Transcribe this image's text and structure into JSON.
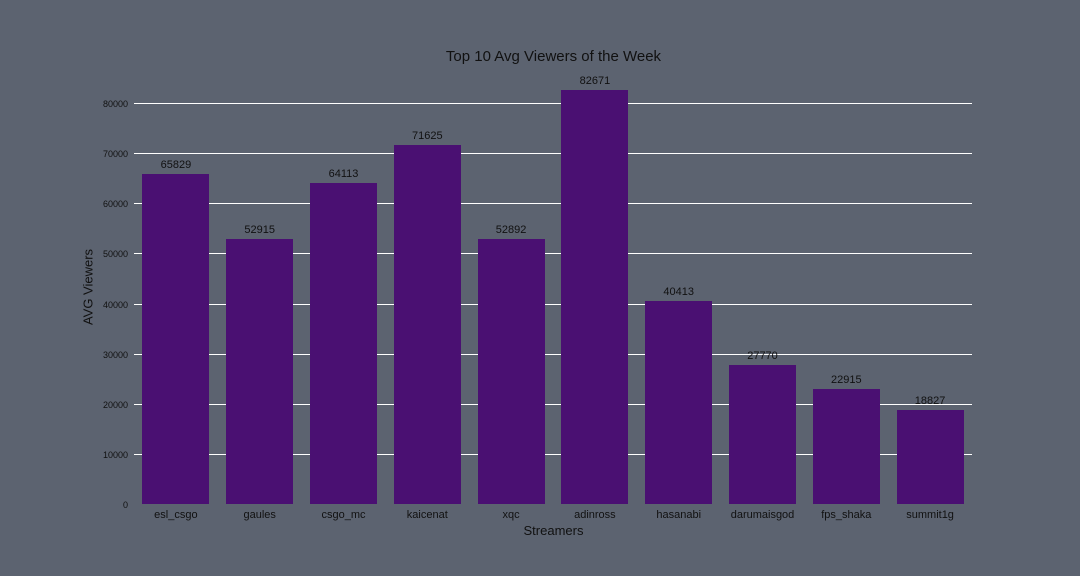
{
  "chart_data": {
    "type": "bar",
    "title": "Top 10 Avg Viewers of the Week",
    "xlabel": "Streamers",
    "ylabel": "AVG Viewers",
    "categories": [
      "esl_csgo",
      "gaules",
      "csgo_mc",
      "kaicenat",
      "xqc",
      "adinross",
      "hasanabi",
      "darumaisgod",
      "fps_shaka",
      "summit1g"
    ],
    "values": [
      65829,
      52915,
      64113,
      71625,
      52892,
      82671,
      40413,
      27770,
      22915,
      18827
    ],
    "yticks": [
      0,
      10000,
      20000,
      30000,
      40000,
      50000,
      60000,
      70000,
      80000
    ],
    "ylim": [
      0,
      80000
    ],
    "grid": true,
    "bar_color": "#4a1072",
    "background_color": "#5c6370"
  }
}
